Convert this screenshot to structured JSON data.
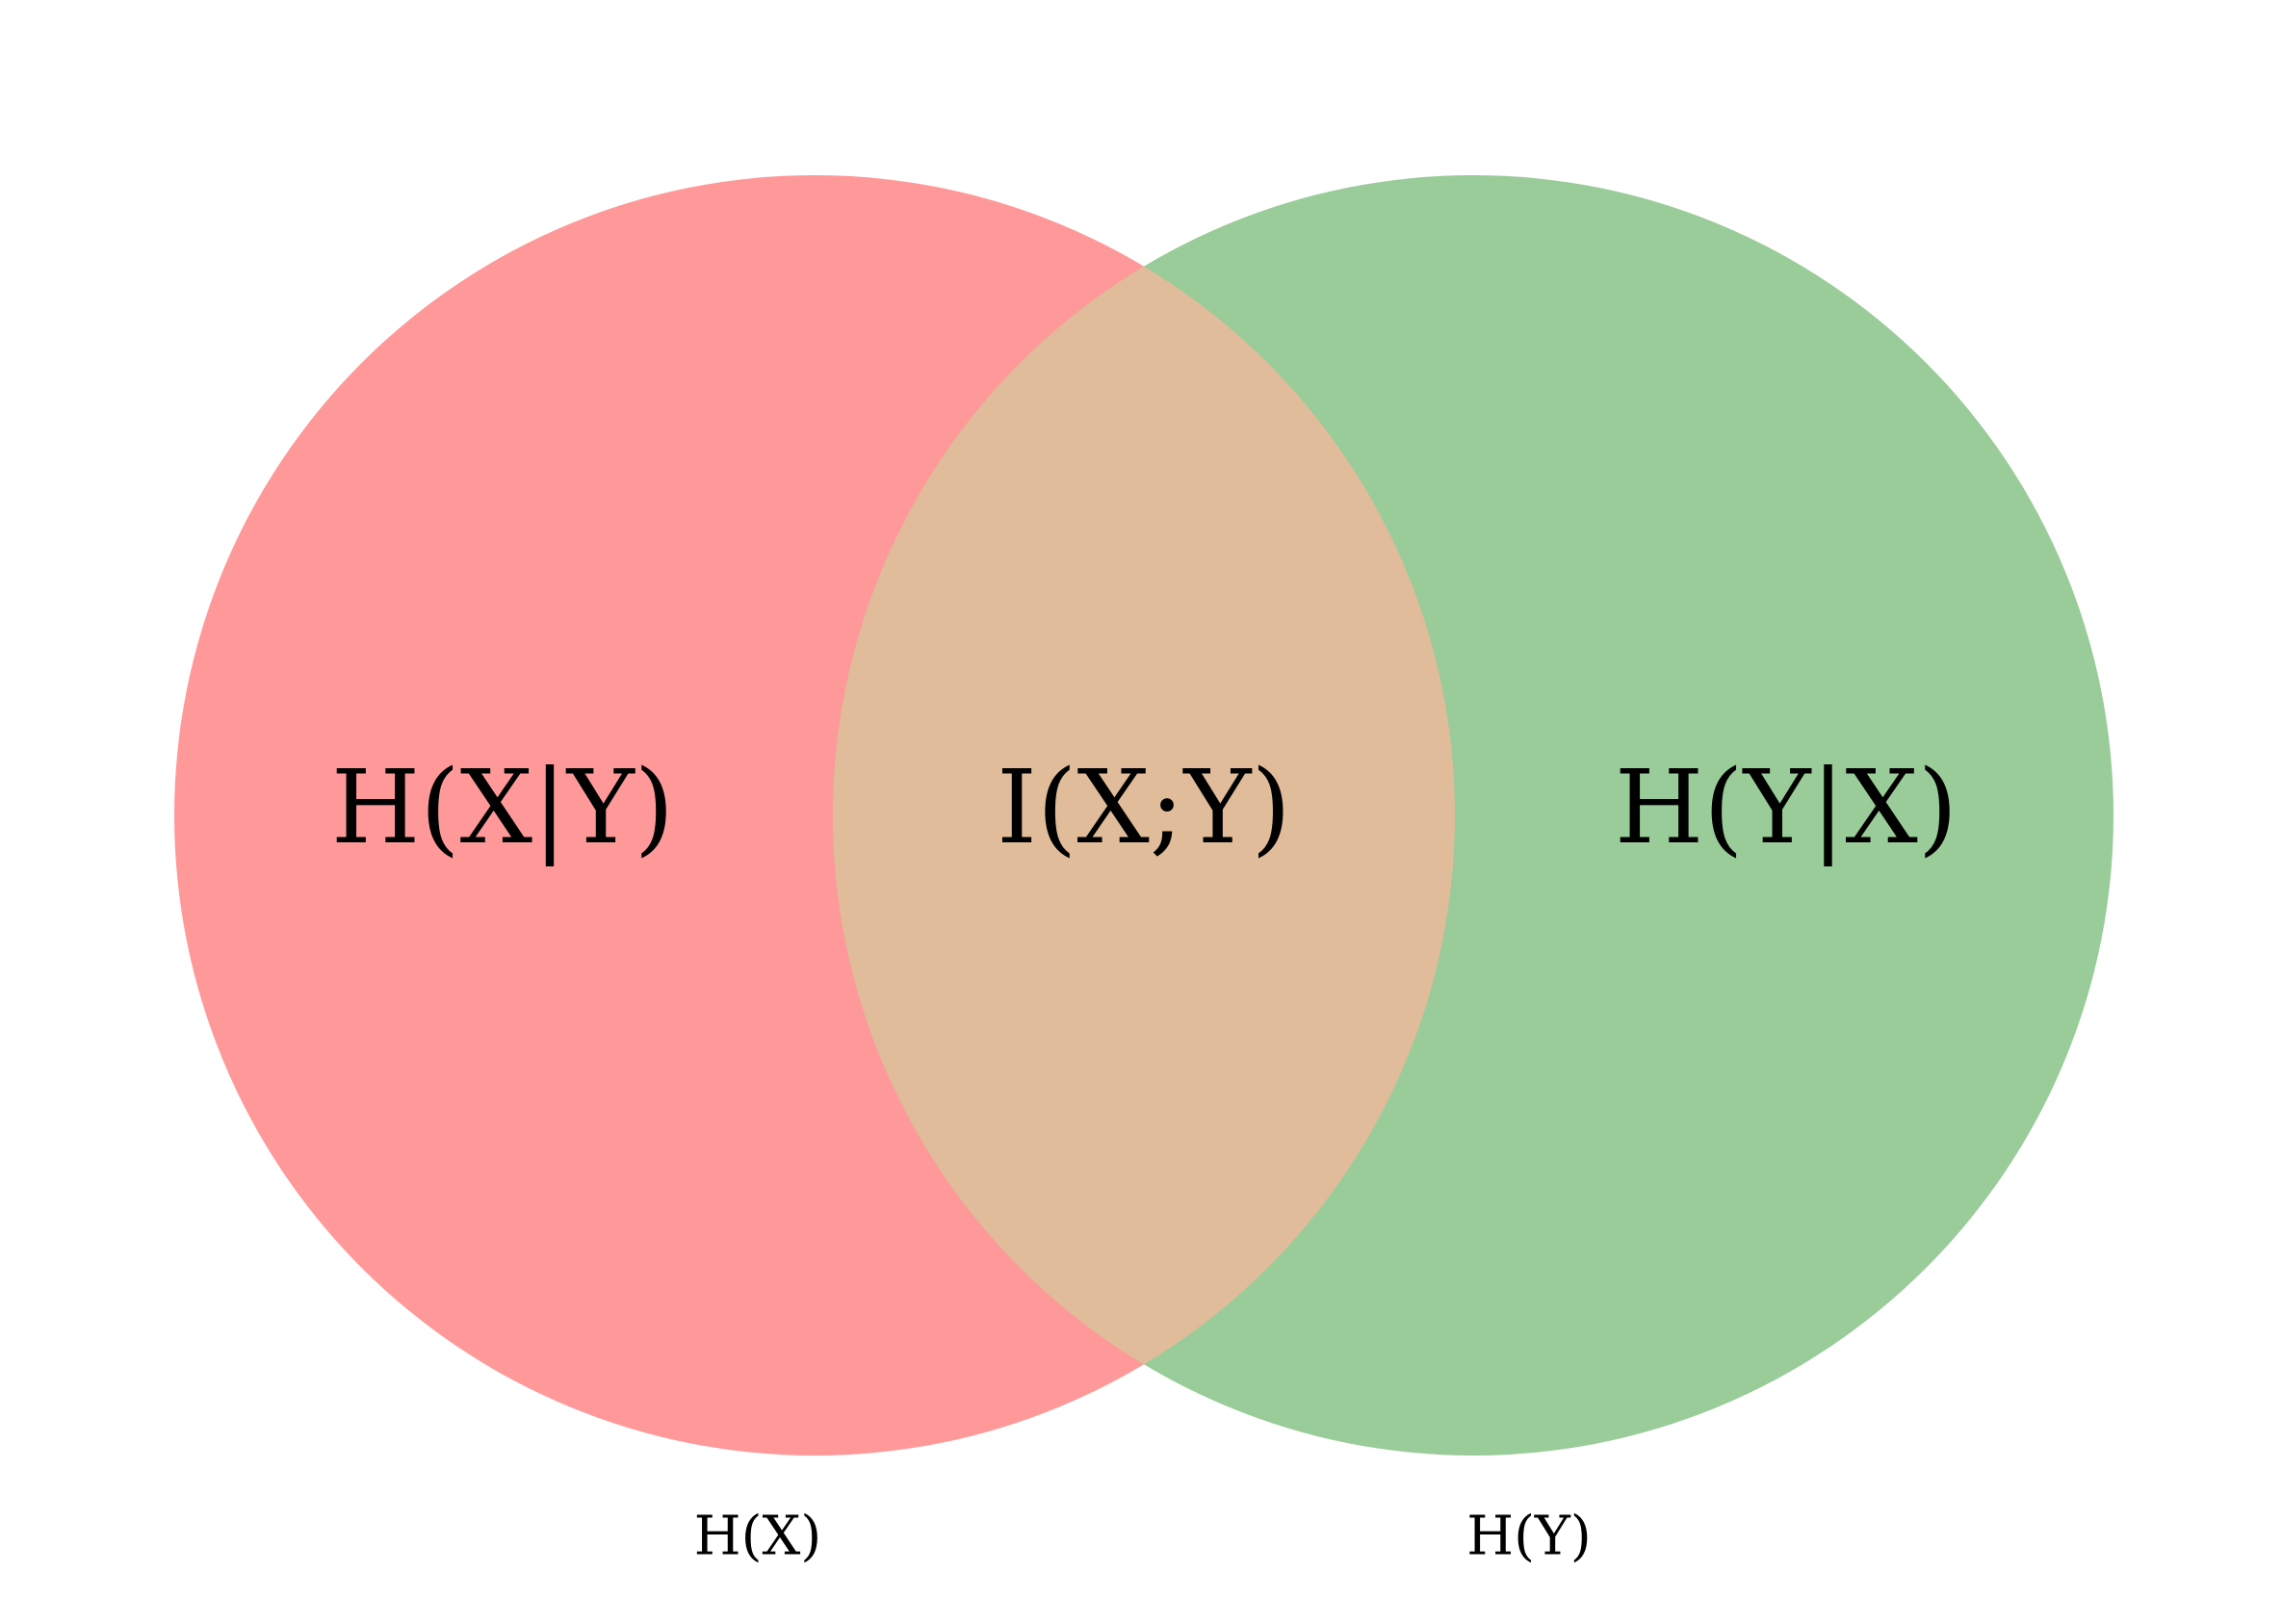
{
  "diagram": {
    "type": "venn",
    "sets": [
      {
        "id": "x",
        "label": "H(X)",
        "color": "#ff9999"
      },
      {
        "id": "y",
        "label": "H(Y)",
        "color": "#99cc99"
      }
    ],
    "overlap_color": "#e0bc9a",
    "regions": {
      "left_only": "H(X|Y)",
      "intersection": "I(X;Y)",
      "right_only": "H(Y|X)"
    }
  }
}
